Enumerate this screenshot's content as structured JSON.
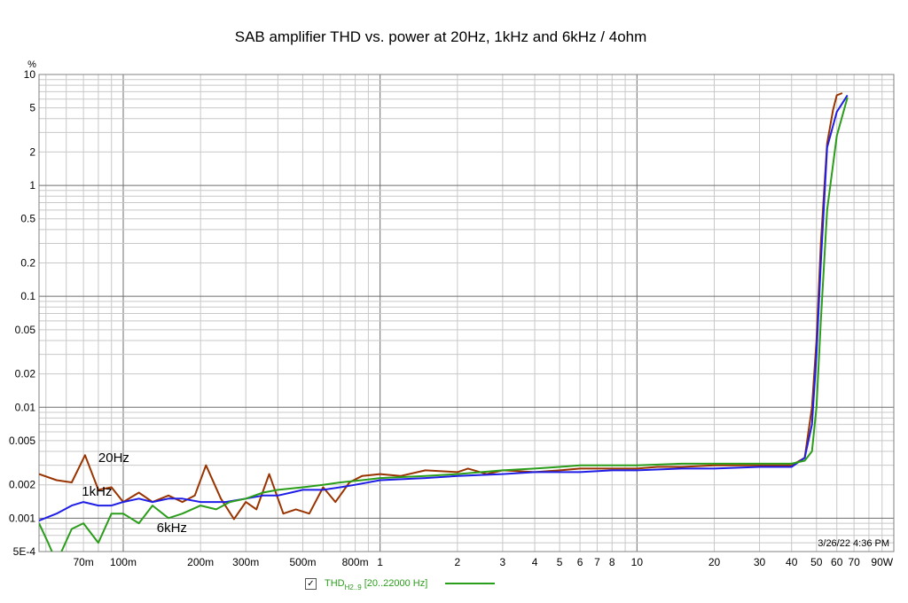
{
  "chart_data": {
    "type": "line",
    "title": "SAB amplifier THD vs. power at 20Hz, 1kHz and 6kHz / 4ohm",
    "xlabel": "",
    "ylabel": "",
    "x_unit": "W",
    "y_unit": "%",
    "x_scale": "log",
    "y_scale": "log",
    "xlim": [
      0.047,
      100
    ],
    "ylim": [
      0.0005,
      10
    ],
    "grid": true,
    "x_tick_values": [
      0.07,
      0.1,
      0.2,
      0.3,
      0.5,
      0.8,
      1,
      2,
      3,
      4,
      5,
      6,
      7,
      8,
      10,
      20,
      30,
      40,
      50,
      60,
      70,
      90
    ],
    "x_tick_labels": [
      "70m",
      "100m",
      "200m",
      "300m",
      "500m",
      "800m",
      "1",
      "2",
      "3",
      "4",
      "5",
      "6",
      "7",
      "8",
      "10",
      "20",
      "30",
      "40",
      "50",
      "60",
      "70",
      "90W"
    ],
    "y_tick_values": [
      10,
      5,
      2,
      1,
      0.5,
      0.2,
      0.1,
      0.05,
      0.02,
      0.01,
      0.005,
      0.002,
      0.001,
      0.0005
    ],
    "y_tick_labels": [
      "10",
      "5",
      "2",
      "1",
      "0.5",
      "0.2",
      "0.1",
      "0.05",
      "0.02",
      "0.01",
      "0.005",
      "0.002",
      "0.001",
      "5E-4"
    ],
    "timestamp": "3/26/22 4:36 PM",
    "annotations": [
      {
        "text": "20Hz",
        "x": 0.08,
        "y": 0.0032
      },
      {
        "text": "1kHz",
        "x": 0.069,
        "y": 0.0016
      },
      {
        "text": "6kHz",
        "x": 0.135,
        "y": 0.00075
      }
    ],
    "series": [
      {
        "color": "#993300",
        "x": [
          0.047,
          0.055,
          0.063,
          0.071,
          0.08,
          0.09,
          0.1,
          0.115,
          0.13,
          0.15,
          0.17,
          0.19,
          0.21,
          0.24,
          0.27,
          0.3,
          0.33,
          0.37,
          0.42,
          0.47,
          0.53,
          0.6,
          0.67,
          0.76,
          0.85,
          1,
          1.2,
          1.5,
          2,
          2.2,
          2.6,
          3,
          4,
          5,
          6,
          7,
          8,
          10,
          12,
          15,
          20,
          25,
          30,
          35,
          40,
          45,
          48,
          50,
          52,
          55,
          58,
          60,
          63
        ],
        "y": [
          0.0025,
          0.0022,
          0.0021,
          0.0037,
          0.0018,
          0.0019,
          0.0014,
          0.0017,
          0.0014,
          0.0016,
          0.0014,
          0.0016,
          0.003,
          0.0015,
          0.00098,
          0.0014,
          0.0012,
          0.0025,
          0.0011,
          0.0012,
          0.0011,
          0.0019,
          0.0014,
          0.0021,
          0.0024,
          0.0025,
          0.0024,
          0.0027,
          0.0026,
          0.0028,
          0.0025,
          0.0027,
          0.0026,
          0.0027,
          0.0028,
          0.0028,
          0.0028,
          0.0028,
          0.0029,
          0.0029,
          0.003,
          0.003,
          0.003,
          0.003,
          0.003,
          0.0035,
          0.01,
          0.04,
          0.3,
          2.4,
          4.8,
          6.5,
          6.8
        ]
      },
      {
        "color": "#1e1ee6",
        "x": [
          0.047,
          0.055,
          0.063,
          0.07,
          0.08,
          0.09,
          0.1,
          0.115,
          0.13,
          0.15,
          0.17,
          0.2,
          0.25,
          0.3,
          0.35,
          0.4,
          0.45,
          0.5,
          0.6,
          0.7,
          0.8,
          1,
          1.5,
          2,
          3,
          4,
          5,
          6,
          8,
          10,
          15,
          20,
          30,
          40,
          45,
          48,
          50,
          52,
          55,
          60,
          66
        ],
        "y": [
          0.00095,
          0.0011,
          0.0013,
          0.0014,
          0.0013,
          0.0013,
          0.0014,
          0.0015,
          0.0014,
          0.0015,
          0.0015,
          0.0014,
          0.0014,
          0.0015,
          0.0016,
          0.0016,
          0.0017,
          0.0018,
          0.0018,
          0.0019,
          0.002,
          0.0022,
          0.0023,
          0.0024,
          0.0025,
          0.0026,
          0.0026,
          0.0026,
          0.0027,
          0.0027,
          0.0028,
          0.0028,
          0.0029,
          0.0029,
          0.0035,
          0.007,
          0.03,
          0.2,
          2.2,
          4.6,
          6.5
        ]
      },
      {
        "color": "#2a9d1a",
        "x": [
          0.047,
          0.051,
          0.055,
          0.063,
          0.07,
          0.08,
          0.09,
          0.1,
          0.115,
          0.13,
          0.15,
          0.17,
          0.2,
          0.23,
          0.26,
          0.3,
          0.35,
          0.4,
          0.5,
          0.6,
          0.7,
          0.85,
          1,
          1.5,
          2,
          3,
          4,
          5,
          6,
          8,
          10,
          15,
          20,
          30,
          40,
          45,
          48,
          50,
          52,
          55,
          60,
          66
        ],
        "y": [
          0.0009,
          0.0006,
          0.0004,
          0.0008,
          0.0009,
          0.0006,
          0.0011,
          0.0011,
          0.0009,
          0.0013,
          0.001,
          0.0011,
          0.0013,
          0.0012,
          0.0014,
          0.0015,
          0.0017,
          0.0018,
          0.0019,
          0.002,
          0.0021,
          0.0022,
          0.0023,
          0.0024,
          0.0025,
          0.0027,
          0.0028,
          0.0029,
          0.003,
          0.003,
          0.003,
          0.0031,
          0.0031,
          0.0031,
          0.0031,
          0.0033,
          0.004,
          0.01,
          0.06,
          0.6,
          2.8,
          6.2
        ]
      }
    ],
    "legend": {
      "checked": true,
      "label": "THD",
      "subscript": "H2..9",
      "range": "[20..22000 Hz]",
      "color": "#2a9d1a",
      "position": "bottom"
    }
  }
}
